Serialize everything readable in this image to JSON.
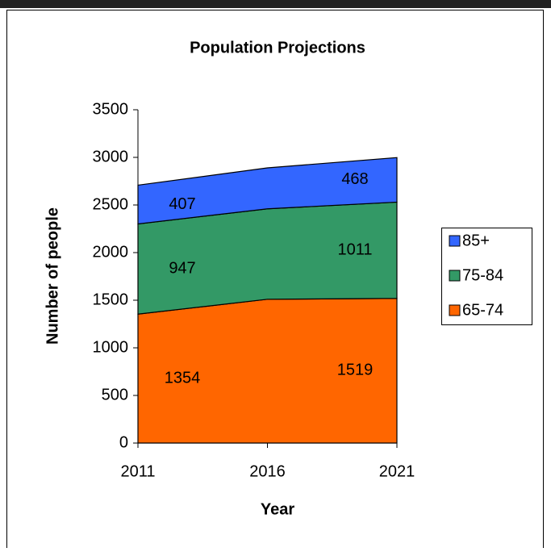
{
  "chart_data": {
    "type": "area",
    "stacked": true,
    "title": "Population Projections",
    "x_label": "Year",
    "y_label": "Number of people",
    "categories": [
      "2011",
      "2016",
      "2021"
    ],
    "series": [
      {
        "name": "65-74",
        "color": "#ff6600",
        "values": [
          1354,
          1510,
          1519
        ]
      },
      {
        "name": "75-84",
        "color": "#339966",
        "values": [
          947,
          950,
          1011
        ]
      },
      {
        "name": "85+",
        "color": "#3366ff",
        "values": [
          407,
          430,
          468
        ]
      }
    ],
    "ylim": [
      0,
      3500
    ],
    "yticks": [
      0,
      500,
      1000,
      1500,
      2000,
      2500,
      3000,
      3500
    ],
    "grid": false,
    "legend": "right"
  }
}
